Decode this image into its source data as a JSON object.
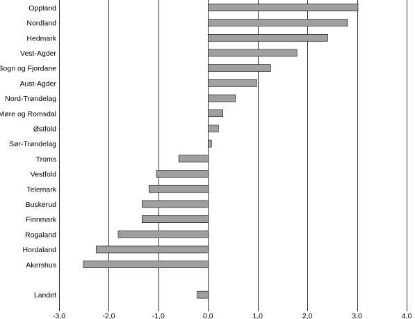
{
  "chart_data": {
    "type": "bar",
    "orientation": "horizontal",
    "title": "",
    "xlabel": "",
    "ylabel": "",
    "xlim": [
      -3.0,
      4.0
    ],
    "x_ticks": [
      -3.0,
      -2.0,
      -1.0,
      0.0,
      1.0,
      2.0,
      3.0,
      4.0
    ],
    "x_tick_labels": [
      "-3,0",
      "-2,0",
      "-1,0",
      "0,0",
      "1,0",
      "2,0",
      "3,0",
      "4,0"
    ],
    "grid": "vertical",
    "legend": "none",
    "bar_color": "#a0a0a0",
    "bar_edge_color": "#000000",
    "categories": [
      "Oppland",
      "Nordland",
      "Hedmark",
      "Vest-Agder",
      "Sogn og Fjordane",
      "Aust-Agder",
      "Nord-Trøndelag",
      "Møre og Romsdal",
      "Østfold",
      "Sør-Trøndelag",
      "Troms",
      "Vestfold",
      "Telemark",
      "Buskerud",
      "Finnmark",
      "Rogaland",
      "Hordaland",
      "Akershus",
      "",
      "Landet"
    ],
    "values": [
      3.02,
      2.81,
      2.41,
      1.79,
      1.26,
      0.98,
      0.55,
      0.3,
      0.21,
      0.07,
      -0.59,
      -1.04,
      -1.19,
      -1.33,
      -1.33,
      -1.81,
      -2.25,
      -2.51,
      null,
      -0.22
    ]
  }
}
